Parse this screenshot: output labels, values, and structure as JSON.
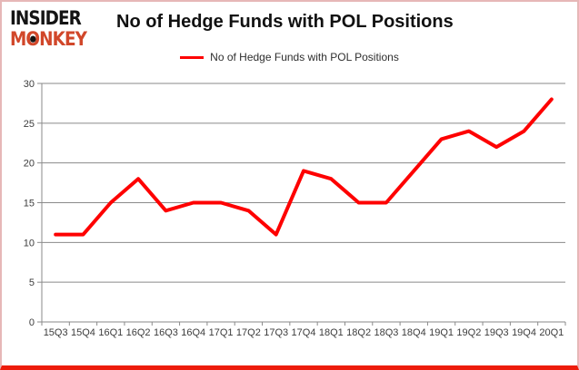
{
  "brand": {
    "line1": "INSIDER",
    "line2_pre": "M",
    "line2_o": "O",
    "line2_post": "NKEY",
    "color_line1": "#141414",
    "color_line2": "#d1472a"
  },
  "header": {
    "title": "No of Hedge Funds with POL Positions"
  },
  "legend": {
    "label": "No of Hedge Funds with POL Positions",
    "swatch_color": "#fe0000"
  },
  "chart_data": {
    "type": "line",
    "title": "No of Hedge Funds with POL Positions",
    "categories": [
      "15Q3",
      "15Q4",
      "16Q1",
      "16Q2",
      "16Q3",
      "16Q4",
      "17Q1",
      "17Q2",
      "17Q3",
      "17Q4",
      "18Q1",
      "18Q2",
      "18Q3",
      "18Q4",
      "19Q1",
      "19Q2",
      "19Q3",
      "19Q4",
      "20Q1"
    ],
    "series": [
      {
        "name": "No of Hedge Funds with POL Positions",
        "color": "#fe0000",
        "values": [
          11,
          11,
          15,
          18,
          14,
          15,
          15,
          14,
          11,
          19,
          18,
          15,
          15,
          19,
          23,
          24,
          22,
          24,
          28
        ]
      }
    ],
    "xlabel": "",
    "ylabel": "",
    "ylim": [
      0,
      30
    ],
    "yticks": [
      0,
      5,
      10,
      15,
      20,
      25,
      30
    ],
    "grid": true,
    "legend_position": "top-center",
    "gridline_color": "#8a8a8a",
    "axis_color": "#8a8a8a",
    "tick_label_color": "#3c3c3c",
    "line_width": 4
  },
  "frame": {
    "border_color": "#e6b7b7",
    "bottom_bar_color": "#ed1c0b"
  }
}
